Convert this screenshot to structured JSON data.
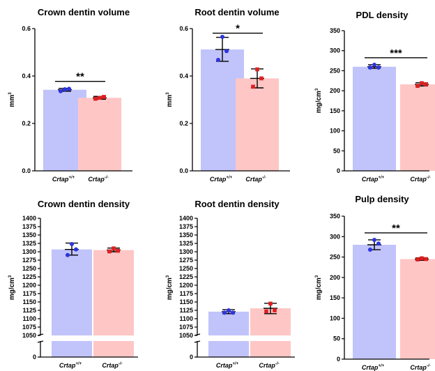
{
  "colors": {
    "wt_bar": "#c1c3fb",
    "ko_bar": "#ffc6c6",
    "wt_point": "#2d34e0",
    "ko_point": "#e01f1f",
    "line": "#000000"
  },
  "groups": [
    {
      "base": "Crtap",
      "sup": "+/+"
    },
    {
      "base": "Crtap",
      "sup": "-/-"
    }
  ],
  "chart_data": [
    {
      "type": "bar",
      "title": "Crown dentin volume",
      "ylabel": "mm3",
      "ylabel_base": "mm",
      "ylabel_sup": "3",
      "ylim": [
        0,
        0.6
      ],
      "yticks": [
        "0.0",
        "0.2",
        "0.4",
        "0.6"
      ],
      "categories": [
        "Crtap+/+",
        "Crtap-/-"
      ],
      "values": [
        0.342,
        0.308
      ],
      "error": [
        [
          0.336,
          0.348
        ],
        [
          0.302,
          0.314
        ]
      ],
      "points": [
        [
          0.336,
          0.344,
          0.346
        ],
        [
          0.304,
          0.308,
          0.312
        ]
      ],
      "significance": "**"
    },
    {
      "type": "bar",
      "title": "Root dentin volume",
      "ylabel": "mm3",
      "ylabel_base": "mm",
      "ylabel_sup": "3",
      "ylim": [
        0,
        0.6
      ],
      "yticks": [
        "0.0",
        "0.2",
        "0.4",
        "0.6"
      ],
      "categories": [
        "Crtap+/+",
        "Crtap-/-"
      ],
      "values": [
        0.512,
        0.39
      ],
      "error": [
        [
          0.462,
          0.563
        ],
        [
          0.35,
          0.43
        ]
      ],
      "points": [
        [
          0.468,
          0.565,
          0.505
        ],
        [
          0.355,
          0.428,
          0.39
        ]
      ],
      "significance": "*"
    },
    {
      "type": "bar",
      "title": "PDL density",
      "ylabel": "mg/cm3",
      "ylabel_base": "mg/cm",
      "ylabel_sup": "3",
      "ylim": [
        0,
        350
      ],
      "yticks": [
        "0",
        "50",
        "100",
        "150",
        "200",
        "250",
        "300",
        "350"
      ],
      "categories": [
        "Crtap+/+",
        "Crtap-/-"
      ],
      "values": [
        260,
        216
      ],
      "error": [
        [
          256,
          265
        ],
        [
          212,
          220
        ]
      ],
      "points": [
        [
          258,
          265,
          258
        ],
        [
          212,
          219,
          216
        ]
      ],
      "significance": "***"
    },
    {
      "type": "bar",
      "title": "Crown dentin density",
      "ylabel": "mg/cm3",
      "ylabel_base": "mg/cm",
      "ylabel_sup": "3",
      "ylim": [
        1050,
        1400
      ],
      "axis_break": true,
      "lower_tick": "0",
      "yticks": [
        "1050",
        "1075",
        "1100",
        "1125",
        "1150",
        "1175",
        "1200",
        "1225",
        "1250",
        "1275",
        "1300",
        "1325",
        "1350",
        "1375",
        "1400"
      ],
      "categories": [
        "Crtap+/+",
        "Crtap-/-"
      ],
      "values": [
        1307,
        1305
      ],
      "error": [
        [
          1290,
          1326
        ],
        [
          1300,
          1311
        ]
      ],
      "points": [
        [
          1290,
          1323,
          1307
        ],
        [
          1301,
          1310,
          1303
        ]
      ],
      "significance": ""
    },
    {
      "type": "bar",
      "title": "Root dentin density",
      "ylabel": "mg/cm3",
      "ylabel_base": "mg/cm",
      "ylabel_sup": "3",
      "ylim": [
        1050,
        1400
      ],
      "axis_break": true,
      "lower_tick": "0",
      "yticks": [
        "1050",
        "1075",
        "1100",
        "1125",
        "1150",
        "1175",
        "1200",
        "1225",
        "1250",
        "1275",
        "1300",
        "1325",
        "1350",
        "1375",
        "1400"
      ],
      "categories": [
        "Crtap+/+",
        "Crtap-/-"
      ],
      "values": [
        1121,
        1131
      ],
      "error": [
        [
          1115,
          1127
        ],
        [
          1115,
          1146
        ]
      ],
      "points": [
        [
          1118,
          1125,
          1118
        ],
        [
          1122,
          1145,
          1125
        ]
      ],
      "significance": ""
    },
    {
      "type": "bar",
      "title": "Pulp density",
      "ylabel": "mg/cm3",
      "ylabel_base": "mg/cm",
      "ylabel_sup": "3",
      "ylim": [
        0,
        350
      ],
      "yticks": [
        "0",
        "50",
        "100",
        "150",
        "200",
        "250",
        "300",
        "350"
      ],
      "categories": [
        "Crtap+/+",
        "Crtap-/-"
      ],
      "values": [
        280,
        245
      ],
      "error": [
        [
          268,
          292
        ],
        [
          242,
          248
        ]
      ],
      "points": [
        [
          268,
          292,
          283
        ],
        [
          244,
          247,
          245
        ]
      ],
      "significance": "**"
    }
  ]
}
